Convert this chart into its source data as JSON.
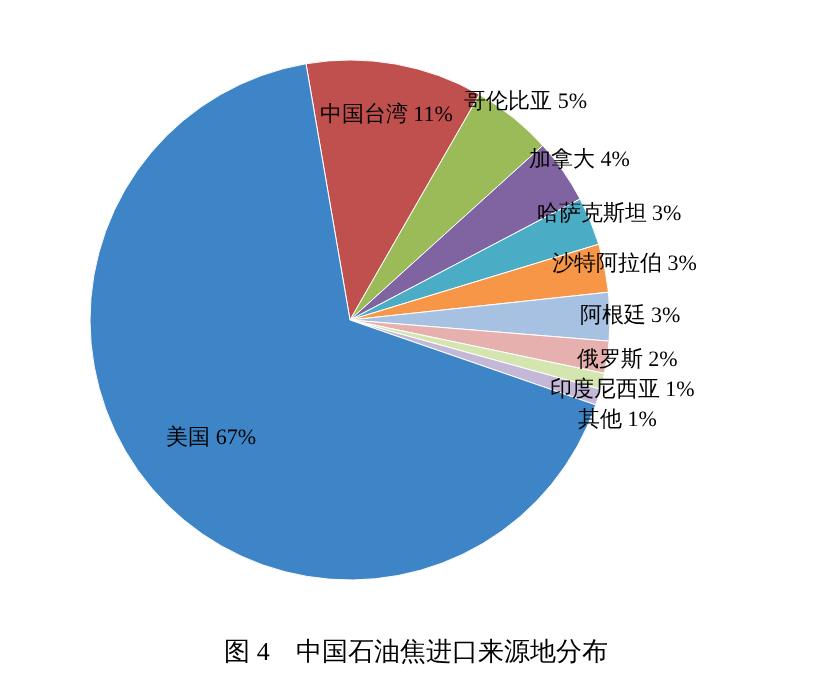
{
  "chart_data": {
    "type": "pie",
    "title": "图 4　中国石油焦进口来源地分布",
    "categories": [
      "中国台湾",
      "哥伦比亚",
      "加拿大",
      "哈萨克斯坦",
      "沙特阿拉伯",
      "阿根廷",
      "俄罗斯",
      "印度尼西亚",
      "其他",
      "美国"
    ],
    "values": [
      11,
      5,
      4,
      3,
      3,
      3,
      2,
      1,
      1,
      67
    ],
    "value_labels": [
      "11%",
      "5%",
      "4%",
      "3%",
      "3%",
      "3%",
      "2%",
      "1%",
      "1%",
      "67%"
    ],
    "colors": [
      "#c0504d",
      "#9bbb59",
      "#8064a2",
      "#4bacc6",
      "#f79646",
      "#a7c1e2",
      "#e6b0ae",
      "#d4e5b0",
      "#c4b8d8",
      "#3d85c6"
    ]
  }
}
